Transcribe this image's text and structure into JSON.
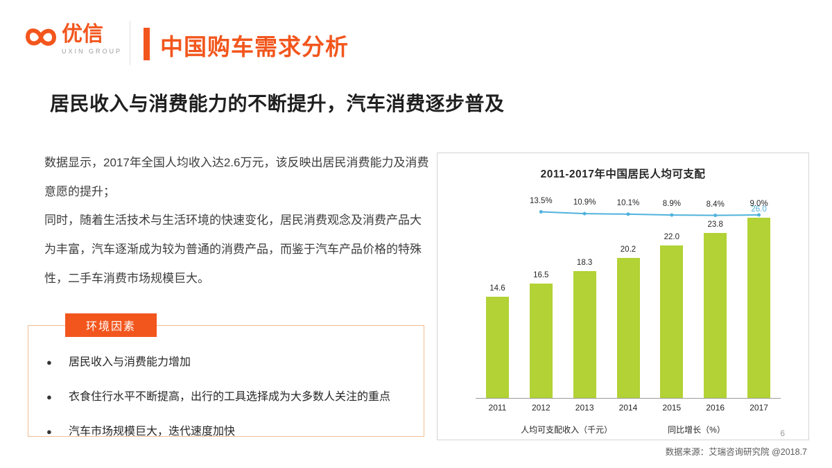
{
  "colors": {
    "accent": "#f2561d",
    "bar": "#b2d235",
    "line": "#4fb2dc"
  },
  "header": {
    "brand": "优信",
    "brand_sub": "UXIN GROUP",
    "page_title": "中国购车需求分析"
  },
  "headline": "居民收入与消费能力的不断提升，汽车消费逐步普及",
  "body_copy": {
    "paragraph1": "数据显示，2017年全国人均收入达2.6万元，该反映出居民消费能力及消费意愿的提升；",
    "paragraph2": "同时，随着生活技术与生活环境的快速变化，居民消费观念及消费产品大为丰富，汽车逐渐成为较为普通的消费产品，而鉴于汽车产品价格的特殊性，二手车消费市场规模巨大。"
  },
  "factors": {
    "badge": "环境因素",
    "items": [
      "居民收入与消费能力增加",
      "衣食住行水平不断提高，出行的工具选择成为大多数人关注的重点",
      "汽车市场规模巨大，迭代速度加快"
    ]
  },
  "chart_data": {
    "type": "bar",
    "title": "2011-2017年中国居民人均可支配",
    "categories": [
      "2011",
      "2012",
      "2013",
      "2014",
      "2015",
      "2016",
      "2017"
    ],
    "series": [
      {
        "name": "人均可支配收入（千元）",
        "type": "bar",
        "color": "#b2d235",
        "values": [
          14.6,
          16.5,
          18.3,
          20.2,
          22.0,
          23.8,
          26.0
        ]
      },
      {
        "name": "同比增长（%）",
        "type": "line",
        "color": "#4fb2dc",
        "unit": "%",
        "values": [
          null,
          13.5,
          10.9,
          10.1,
          8.9,
          8.4,
          9.0
        ]
      }
    ],
    "ylim": [
      0,
      30
    ],
    "grid": false,
    "legend_position": "bottom"
  },
  "footer": {
    "page_number": "6",
    "source": "数据来源：艾瑞咨询研究院 @2018.7"
  }
}
